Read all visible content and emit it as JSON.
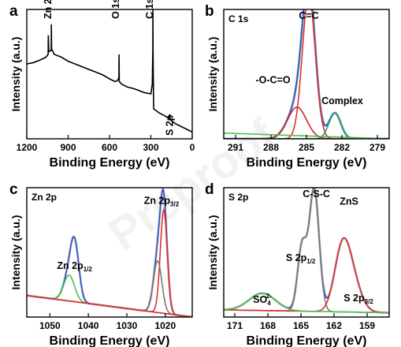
{
  "watermark": "Preproof",
  "chart_data": [
    {
      "panel": "a",
      "type": "line",
      "panel_label": "a",
      "xlabel": "Binding Energy (eV)",
      "ylabel": "Intensity (a.u.)",
      "xlim": [
        1200,
        0
      ],
      "x_reversed": true,
      "xticks": [
        "1200",
        "900",
        "600",
        "300",
        "0"
      ],
      "yticks": "none",
      "annotations": [
        {
          "text": "Zn 2p",
          "x": 1022
        },
        {
          "text": "O 1s",
          "x": 531
        },
        {
          "text": "C 1s",
          "x": 285
        },
        {
          "text": "S 2p",
          "x": 163
        }
      ],
      "series": [
        {
          "color": "#000000",
          "x": [
            1200,
            1150,
            1100,
            1060,
            1045,
            1044,
            1040,
            1023,
            1022,
            1020,
            1000,
            950,
            900,
            850,
            800,
            750,
            700,
            650,
            600,
            560,
            540,
            532,
            531,
            529,
            510,
            470,
            430,
            400,
            350,
            300,
            290,
            286,
            285,
            284,
            280,
            240,
            200,
            170,
            163,
            160,
            120,
            80,
            40,
            0
          ],
          "y": [
            0.55,
            0.56,
            0.58,
            0.6,
            0.62,
            0.76,
            0.64,
            0.65,
            0.84,
            0.66,
            0.62,
            0.6,
            0.57,
            0.55,
            0.53,
            0.51,
            0.49,
            0.47,
            0.44,
            0.42,
            0.43,
            0.45,
            0.62,
            0.42,
            0.4,
            0.38,
            0.37,
            0.36,
            0.34,
            0.33,
            0.4,
            0.66,
            0.98,
            0.62,
            0.22,
            0.19,
            0.17,
            0.15,
            0.18,
            0.14,
            0.11,
            0.09,
            0.07,
            0.05
          ]
        }
      ]
    },
    {
      "panel": "b",
      "type": "line",
      "panel_label": "b",
      "inner_title": "C 1s",
      "xlabel": "Binding Energy (eV)",
      "ylabel": "Intensity (a.u.)",
      "xlim": [
        292,
        278
      ],
      "x_reversed": true,
      "xticks": [
        "291",
        "288",
        "285",
        "282",
        "279"
      ],
      "yticks": "none",
      "annotations": [
        {
          "text": "C=C",
          "x": 284.8
        },
        {
          "text": "-O-C=O",
          "x": 286.1
        },
        {
          "text": "Complex",
          "x": 282.5
        }
      ],
      "series": [
        {
          "color": "#3a7a7a",
          "component": "raw",
          "peaks": [
            [
              284.8,
              1.0,
              0.55
            ],
            [
              285.8,
              0.22,
              0.8
            ],
            [
              282.6,
              0.18,
              0.5
            ]
          ]
        },
        {
          "color": "#2f53c8",
          "component": "envelope",
          "peaks": [
            [
              284.8,
              1.0,
              0.55
            ],
            [
              285.8,
              0.22,
              0.8
            ],
            [
              282.6,
              0.18,
              0.5
            ]
          ]
        },
        {
          "color": "#e03030",
          "component": "C=C",
          "peaks": [
            [
              284.8,
              1.0,
              0.55
            ]
          ]
        },
        {
          "color": "#d02626",
          "component": "-O-C=O",
          "peaks": [
            [
              285.8,
              0.22,
              0.8
            ]
          ]
        },
        {
          "color": "#2a9a7a",
          "component": "Complex",
          "peaks": [
            [
              282.6,
              0.18,
              0.5
            ]
          ]
        },
        {
          "color": "#4cc04c",
          "component": "background",
          "line": [
            [
              292,
              0.04
            ],
            [
              278,
              0.0
            ]
          ]
        }
      ]
    },
    {
      "panel": "c",
      "type": "line",
      "panel_label": "c",
      "inner_title": "Zn 2p",
      "xlabel": "Binding Energy (eV)",
      "ylabel": "Intensity (a.u.)",
      "xlim": [
        1056,
        1013
      ],
      "x_reversed": true,
      "xticks": [
        "1050",
        "1040",
        "1030",
        "1020"
      ],
      "yticks": "none",
      "annotations": [
        {
          "text": "Zn 2p",
          "sub": "1/2",
          "x": 1044
        },
        {
          "text": "Zn 2p",
          "sub": "3/2",
          "x": 1021
        }
      ],
      "series": [
        {
          "color": "#9a9a9a",
          "component": "raw",
          "peaks": [
            [
              1043.5,
              0.34,
              1.1
            ],
            [
              1045.0,
              0.18,
              1.4
            ],
            [
              1020.4,
              0.72,
              0.9
            ],
            [
              1022.0,
              0.36,
              1.1
            ]
          ],
          "baseline": [
            [
              1056,
              0.15
            ],
            [
              1013,
              0.0
            ]
          ]
        },
        {
          "color": "#2f53c8",
          "component": "envelope",
          "peaks": [
            [
              1043.5,
              0.34,
              1.1
            ],
            [
              1045.0,
              0.18,
              1.4
            ],
            [
              1020.4,
              0.72,
              0.9
            ],
            [
              1022.0,
              0.36,
              1.1
            ]
          ],
          "baseline": [
            [
              1056,
              0.15
            ],
            [
              1013,
              0.0
            ]
          ]
        },
        {
          "color": "#e03030",
          "component": "Zn 2p3/2",
          "peaks": [
            [
              1020.4,
              0.72,
              0.9
            ]
          ],
          "baseline": [
            [
              1056,
              0.15
            ],
            [
              1013,
              0.0
            ]
          ]
        },
        {
          "color": "#4cc04c",
          "component": "Zn 2p1/2",
          "peaks": [
            [
              1045.0,
              0.18,
              1.4
            ]
          ],
          "baseline": [
            [
              1056,
              0.15
            ],
            [
              1013,
              0.0
            ]
          ]
        },
        {
          "color": "#777777",
          "component": "Zn 2p3/2 b",
          "peaks": [
            [
              1022.0,
              0.36,
              1.1
            ]
          ],
          "baseline": [
            [
              1056,
              0.15
            ],
            [
              1013,
              0.0
            ]
          ]
        },
        {
          "color": "#e03030",
          "component": "baseline",
          "line": [
            [
              1056,
              0.15
            ],
            [
              1013,
              0.0
            ]
          ]
        }
      ]
    },
    {
      "panel": "d",
      "type": "line",
      "panel_label": "d",
      "inner_title": "S 2p",
      "xlabel": "Binding Energy (eV)",
      "ylabel": "Intensity (a.u.)",
      "xlim": [
        172,
        157
      ],
      "x_reversed": true,
      "xticks": [
        "171",
        "168",
        "165",
        "162",
        "159"
      ],
      "yticks": "none",
      "annotations": [
        {
          "text": "S 2p",
          "sub": "1/2",
          "x": 164.6
        },
        {
          "text": "S 2p",
          "sub": "3/2",
          "x": 160.5
        },
        {
          "text": "SO",
          "sub": "4",
          "sup": "2-",
          "x": 168.5
        },
        {
          "text": "C-S-C",
          "x": 163.6
        },
        {
          "text": "ZnS",
          "x": 161.5
        }
      ],
      "series": [
        {
          "color": "#9a9a9a",
          "component": "raw",
          "peaks": [
            [
              163.8,
              0.85,
              0.45
            ],
            [
              164.9,
              0.45,
              0.4
            ],
            [
              161.3,
              0.38,
              0.7
            ],
            [
              160.4,
              0.22,
              0.8
            ],
            [
              168.5,
              0.12,
              1.2
            ]
          ],
          "baseline": [
            [
              172,
              0.05
            ],
            [
              157,
              0.03
            ]
          ]
        },
        {
          "color": "#2f53c8",
          "component": "envelope",
          "peaks": [
            [
              163.8,
              0.85,
              0.45
            ],
            [
              164.9,
              0.45,
              0.4
            ],
            [
              161.3,
              0.38,
              0.7
            ],
            [
              160.4,
              0.22,
              0.8
            ],
            [
              168.5,
              0.12,
              1.2
            ]
          ],
          "baseline": [
            [
              172,
              0.05
            ],
            [
              157,
              0.03
            ]
          ]
        },
        {
          "color": "#777777",
          "component": "C-S-C",
          "peaks": [
            [
              163.8,
              0.85,
              0.45
            ],
            [
              164.9,
              0.45,
              0.4
            ]
          ],
          "baseline": [
            [
              172,
              0.05
            ],
            [
              157,
              0.03
            ]
          ]
        },
        {
          "color": "#e03030",
          "component": "ZnS",
          "peaks": [
            [
              161.3,
              0.38,
              0.7
            ],
            [
              160.4,
              0.22,
              0.8
            ]
          ],
          "baseline": [
            [
              172,
              0.05
            ],
            [
              157,
              0.03
            ]
          ]
        },
        {
          "color": "#4cc04c",
          "component": "SO4",
          "peaks": [
            [
              168.5,
              0.12,
              1.2
            ]
          ],
          "baseline": [
            [
              172,
              0.05
            ],
            [
              157,
              0.03
            ]
          ]
        }
      ]
    }
  ]
}
